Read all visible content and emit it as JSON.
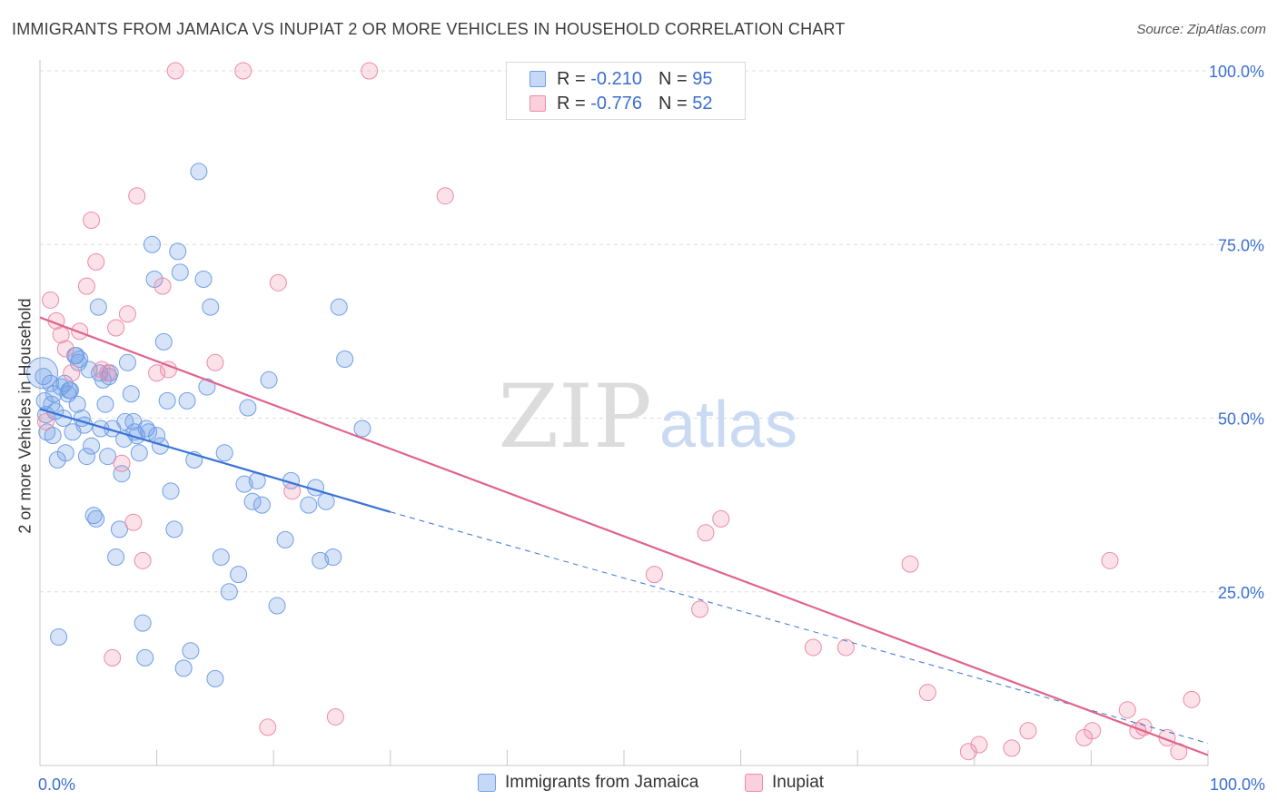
{
  "header": {
    "title": "IMMIGRANTS FROM JAMAICA VS INUPIAT 2 OR MORE VEHICLES IN HOUSEHOLD CORRELATION CHART",
    "source": "Source: ZipAtlas.com"
  },
  "watermark": {
    "zip": "ZIP",
    "atlas": "atlas"
  },
  "legend_top": [
    {
      "r_label": "R =",
      "r_value": "-0.210",
      "n_label": "N =",
      "n_value": "95",
      "color": "#6f9fe6"
    },
    {
      "r_label": "R =",
      "r_value": "-0.776",
      "n_label": "N =",
      "n_value": "52",
      "color": "#ee8aa8"
    }
  ],
  "legend_bottom": [
    {
      "label": "Immigrants from Jamaica",
      "color": "#6f9fe6"
    },
    {
      "label": "Inupiat",
      "color": "#ee8aa8"
    }
  ],
  "chart_data": {
    "type": "scatter",
    "title": "IMMIGRANTS FROM JAMAICA VS INUPIAT 2 OR MORE VEHICLES IN HOUSEHOLD CORRELATION CHART",
    "xlabel": "",
    "ylabel": "2 or more Vehicles in Household",
    "xlim": [
      0,
      100
    ],
    "ylim": [
      0,
      100
    ],
    "x_tick_labels": [
      "0.0%",
      "100.0%"
    ],
    "y_ticks": [
      25,
      50,
      75,
      100
    ],
    "y_tick_labels": [
      "25.0%",
      "50.0%",
      "75.0%",
      "100.0%"
    ],
    "grid": true,
    "legend_position": "top-center",
    "series": [
      {
        "name": "Immigrants from Jamaica",
        "color": "#6f9fe6",
        "trend": {
          "x": [
            0,
            30
          ],
          "y": [
            51.3,
            36.5
          ],
          "extended_to": [
            100,
            3.2
          ]
        },
        "points": [
          [
            0.3,
            56
          ],
          [
            0.5,
            50.5
          ],
          [
            0.6,
            48
          ],
          [
            1,
            52
          ],
          [
            1.2,
            53.5
          ],
          [
            1.3,
            51
          ],
          [
            1.5,
            44
          ],
          [
            1.8,
            54.5
          ],
          [
            2,
            50
          ],
          [
            2.2,
            45
          ],
          [
            2.4,
            53.5
          ],
          [
            2.6,
            54
          ],
          [
            2.8,
            48
          ],
          [
            3,
            59
          ],
          [
            3.2,
            52
          ],
          [
            3.4,
            58.5
          ],
          [
            3.6,
            50
          ],
          [
            3.8,
            49
          ],
          [
            4,
            44.5
          ],
          [
            4.2,
            57
          ],
          [
            4.4,
            46
          ],
          [
            4.6,
            36
          ],
          [
            4.8,
            35.5
          ],
          [
            5,
            66
          ],
          [
            5.2,
            48.5
          ],
          [
            5.4,
            55.5
          ],
          [
            5.6,
            52
          ],
          [
            5.8,
            44.5
          ],
          [
            6,
            56.5
          ],
          [
            6.2,
            48.5
          ],
          [
            6.5,
            30
          ],
          [
            6.8,
            34
          ],
          [
            7,
            42
          ],
          [
            7.2,
            47
          ],
          [
            7.5,
            58
          ],
          [
            7.8,
            53.5
          ],
          [
            8,
            49.5
          ],
          [
            8.3,
            47.5
          ],
          [
            8.5,
            45
          ],
          [
            8.8,
            20.5
          ],
          [
            9,
            15.5
          ],
          [
            9.3,
            48
          ],
          [
            9.6,
            75
          ],
          [
            9.8,
            70
          ],
          [
            10,
            47.5
          ],
          [
            10.3,
            46
          ],
          [
            10.6,
            61
          ],
          [
            10.9,
            52.5
          ],
          [
            11.2,
            39.5
          ],
          [
            11.5,
            34
          ],
          [
            11.8,
            74
          ],
          [
            12,
            71
          ],
          [
            12.3,
            14
          ],
          [
            12.6,
            52.5
          ],
          [
            12.9,
            16.5
          ],
          [
            13.2,
            44
          ],
          [
            13.6,
            85.5
          ],
          [
            14,
            70
          ],
          [
            14.3,
            54.5
          ],
          [
            14.6,
            66
          ],
          [
            15,
            12.5
          ],
          [
            15.5,
            30
          ],
          [
            15.8,
            45
          ],
          [
            16.2,
            25
          ],
          [
            17,
            27.5
          ],
          [
            17.5,
            40.5
          ],
          [
            17.8,
            51.5
          ],
          [
            18.2,
            38
          ],
          [
            18.6,
            41
          ],
          [
            19,
            37.5
          ],
          [
            19.6,
            55.5
          ],
          [
            20.3,
            23
          ],
          [
            21,
            32.5
          ],
          [
            21.5,
            41
          ],
          [
            23,
            37.5
          ],
          [
            23.6,
            40
          ],
          [
            24,
            29.5
          ],
          [
            24.5,
            38
          ],
          [
            25.1,
            30
          ],
          [
            25.6,
            66
          ],
          [
            1.6,
            18.5
          ],
          [
            0.4,
            52.5
          ],
          [
            0.9,
            55
          ],
          [
            1.1,
            47.5
          ],
          [
            2.1,
            55
          ],
          [
            2.5,
            54
          ],
          [
            3.1,
            59
          ],
          [
            3.3,
            58
          ],
          [
            5.1,
            56.5
          ],
          [
            5.9,
            56
          ],
          [
            7.3,
            49.5
          ],
          [
            8.1,
            48
          ],
          [
            9.1,
            48.5
          ],
          [
            26.1,
            58.5
          ],
          [
            27.6,
            48.5
          ]
        ]
      },
      {
        "name": "Inupiat",
        "color": "#ee8aa8",
        "trend": {
          "x": [
            0,
            100
          ],
          "y": [
            64.5,
            1.5
          ]
        },
        "points": [
          [
            0.5,
            49.5
          ],
          [
            0.9,
            67
          ],
          [
            1.4,
            64
          ],
          [
            1.8,
            62
          ],
          [
            2.2,
            60
          ],
          [
            2.7,
            56.5
          ],
          [
            3.4,
            62.5
          ],
          [
            4,
            69
          ],
          [
            4.4,
            78.5
          ],
          [
            4.8,
            72.5
          ],
          [
            5.3,
            57
          ],
          [
            5.8,
            56.5
          ],
          [
            6.2,
            15.5
          ],
          [
            6.5,
            63
          ],
          [
            7,
            43.5
          ],
          [
            7.5,
            65
          ],
          [
            8,
            35
          ],
          [
            8.3,
            82
          ],
          [
            8.8,
            29.5
          ],
          [
            10,
            56.5
          ],
          [
            10.5,
            69
          ],
          [
            11,
            57
          ],
          [
            11.6,
            100
          ],
          [
            15,
            58
          ],
          [
            17.4,
            100
          ],
          [
            19.5,
            5.5
          ],
          [
            20.4,
            69.5
          ],
          [
            21.6,
            39.5
          ],
          [
            25.3,
            7
          ],
          [
            28.2,
            100
          ],
          [
            34.7,
            82
          ],
          [
            52.6,
            27.5
          ],
          [
            56.5,
            22.5
          ],
          [
            57,
            33.5
          ],
          [
            58.3,
            35.5
          ],
          [
            66.2,
            17
          ],
          [
            69,
            17
          ],
          [
            74.5,
            29
          ],
          [
            76,
            10.5
          ],
          [
            79.5,
            2
          ],
          [
            80.4,
            3
          ],
          [
            83.2,
            2.5
          ],
          [
            84.6,
            5
          ],
          [
            89.4,
            4
          ],
          [
            90.1,
            5
          ],
          [
            91.6,
            29.5
          ],
          [
            93.1,
            8
          ],
          [
            94,
            5
          ],
          [
            94.5,
            5.5
          ],
          [
            96.5,
            4
          ],
          [
            97.5,
            2
          ],
          [
            98.6,
            9.5
          ]
        ]
      }
    ]
  }
}
